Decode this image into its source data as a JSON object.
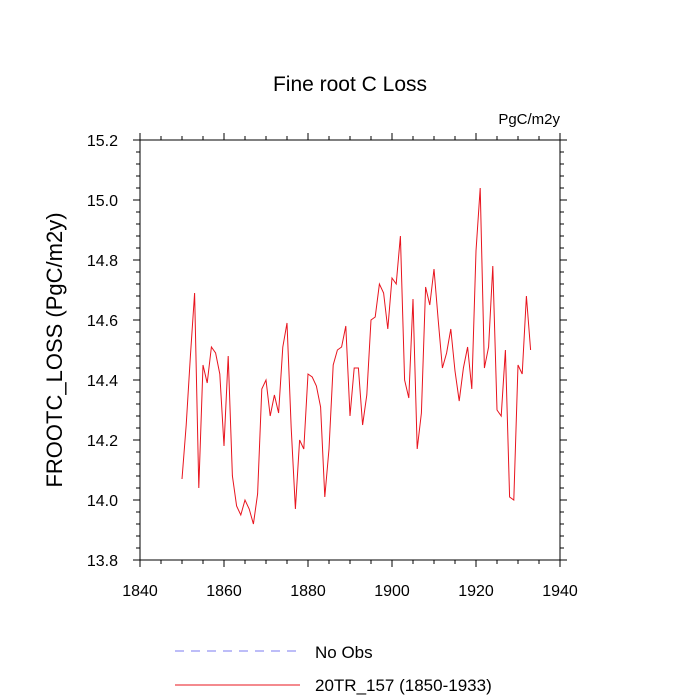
{
  "chart_data": {
    "type": "line",
    "title": "Fine root C Loss",
    "units": "PgC/m2y",
    "ylabel": "FROOTC_LOSS  (PgC/m2y)",
    "xlabel": "",
    "xlim": [
      1840,
      1940
    ],
    "ylim": [
      13.8,
      15.2
    ],
    "xticks": [
      1840,
      1860,
      1880,
      1900,
      1920,
      1940
    ],
    "yticks": [
      13.8,
      14.0,
      14.2,
      14.4,
      14.6,
      14.8,
      15.0,
      15.2
    ],
    "ytick_labels": [
      "13.8",
      "14.0",
      "14.2",
      "14.4",
      "14.6",
      "14.8",
      "15.0",
      "15.2"
    ],
    "series": [
      {
        "name": "20TR_157 (1850-1933)",
        "color": "#e8141e",
        "x": [
          1850,
          1851,
          1852,
          1853,
          1854,
          1855,
          1856,
          1857,
          1858,
          1859,
          1860,
          1861,
          1862,
          1863,
          1864,
          1865,
          1866,
          1867,
          1868,
          1869,
          1870,
          1871,
          1872,
          1873,
          1874,
          1875,
          1876,
          1877,
          1878,
          1879,
          1880,
          1881,
          1882,
          1883,
          1884,
          1885,
          1886,
          1887,
          1888,
          1889,
          1890,
          1891,
          1892,
          1893,
          1894,
          1895,
          1896,
          1897,
          1898,
          1899,
          1900,
          1901,
          1902,
          1903,
          1904,
          1905,
          1906,
          1907,
          1908,
          1909,
          1910,
          1911,
          1912,
          1913,
          1914,
          1915,
          1916,
          1917,
          1918,
          1919,
          1920,
          1921,
          1922,
          1923,
          1924,
          1925,
          1926,
          1927,
          1928,
          1929,
          1930,
          1931,
          1932,
          1933
        ],
        "values": [
          14.07,
          14.25,
          14.48,
          14.69,
          14.04,
          14.45,
          14.39,
          14.51,
          14.49,
          14.42,
          14.18,
          14.48,
          14.08,
          13.98,
          13.95,
          14.0,
          13.97,
          13.92,
          14.02,
          14.37,
          14.4,
          14.28,
          14.35,
          14.29,
          14.51,
          14.59,
          14.24,
          13.97,
          14.2,
          14.17,
          14.42,
          14.41,
          14.38,
          14.31,
          14.01,
          14.17,
          14.45,
          14.5,
          14.51,
          14.58,
          14.28,
          14.44,
          14.44,
          14.25,
          14.35,
          14.6,
          14.61,
          14.72,
          14.69,
          14.57,
          14.74,
          14.72,
          14.88,
          14.4,
          14.34,
          14.67,
          14.17,
          14.29,
          14.71,
          14.65,
          14.77,
          14.6,
          14.44,
          14.49,
          14.57,
          14.43,
          14.33,
          14.44,
          14.51,
          14.37,
          14.83,
          15.04,
          14.44,
          14.51,
          14.78,
          14.3,
          14.28,
          14.5,
          14.01,
          14.0,
          14.45,
          14.42,
          14.68,
          14.5
        ]
      }
    ],
    "legend": {
      "placement": "bottom",
      "entries": [
        {
          "label": "No Obs",
          "color": "#7b7bf2",
          "style": "dashed"
        },
        {
          "label": "20TR_157 (1850-1933)",
          "color": "#e8141e",
          "style": "solid"
        }
      ]
    }
  }
}
